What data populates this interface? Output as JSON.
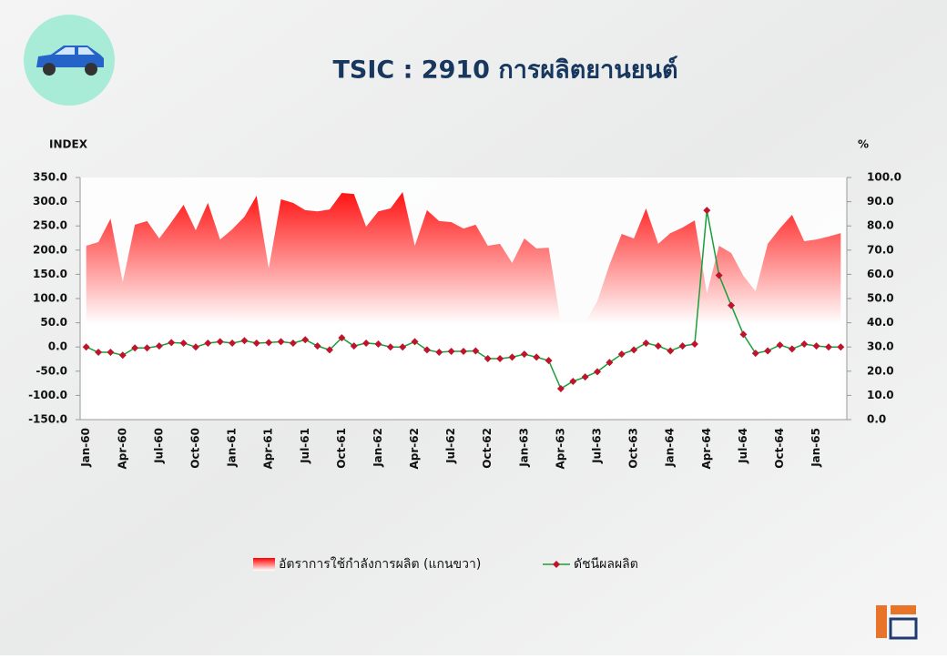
{
  "chart_data": {
    "type": "area-line",
    "title": "TSIC : 2910 การผลิตยานยนต์",
    "y_label": "INDEX",
    "y2_label": "%",
    "categories": [
      "Jan-60",
      null,
      null,
      "Apr-60",
      null,
      null,
      "Jul-60",
      null,
      null,
      "Oct-60",
      null,
      null,
      "Jan-61",
      null,
      null,
      "Apr-61",
      null,
      null,
      "Jul-61",
      null,
      null,
      "Oct-61",
      null,
      null,
      "Jan-62",
      null,
      null,
      "Apr-62",
      null,
      null,
      "Jul-62",
      null,
      null,
      "Oct-62",
      null,
      null,
      "Jan-63",
      null,
      null,
      "Apr-63",
      null,
      null,
      "Jul-63",
      null,
      null,
      "Oct-63",
      null,
      null,
      "Jan-64",
      null,
      null,
      "Apr-64",
      null,
      null,
      "Jul-64",
      null,
      null,
      "Oct-64",
      null,
      null,
      "Jan-65",
      null,
      null
    ],
    "series": [
      {
        "name": "อัตราการใช้กำลังการผลิต (แกนขวา)",
        "kind": "area",
        "axis": "y2",
        "color": "#ff0000",
        "values": [
          71.8,
          73.3,
          83,
          56.8,
          80.5,
          82,
          74.8,
          81.6,
          88.7,
          78.2,
          89.5,
          74.4,
          78.6,
          83.8,
          92.5,
          62.4,
          91,
          89.5,
          86.5,
          86,
          86.8,
          93.6,
          93.2,
          79.7,
          86,
          87.2,
          94,
          71.8,
          86.5,
          82,
          81.6,
          78.9,
          80.5,
          71.8,
          72.6,
          64.7,
          74.8,
          70.7,
          71,
          40,
          40,
          40,
          49,
          64,
          76.7,
          74.8,
          87.2,
          72.6,
          77,
          79.3,
          82.3,
          52,
          71.8,
          68.8,
          59.4,
          53,
          72.6,
          79,
          84.6,
          73.7,
          74.4,
          75.6,
          77
        ]
      },
      {
        "name": "ดัชนีผลผลิต",
        "kind": "line",
        "axis": "y",
        "color": "#1a9e3a",
        "marker_color": "#c0142c",
        "values": [
          0,
          -11,
          -11,
          -17,
          -2,
          -2,
          2,
          9,
          8,
          0,
          8,
          11,
          8,
          13,
          8,
          9,
          11,
          8,
          15,
          2,
          -6,
          19,
          2,
          8,
          6,
          0,
          0,
          11,
          -6,
          -11,
          -9,
          -9,
          -8,
          -24,
          -24,
          -21,
          -15,
          -21,
          -28,
          -86,
          -71,
          -62,
          -51,
          -32,
          -15,
          -6,
          8,
          2,
          -8,
          2,
          6,
          282,
          148,
          86,
          26,
          -13,
          -8,
          4,
          -4,
          6,
          2,
          0,
          0
        ]
      }
    ],
    "ylim": [
      -150,
      350
    ],
    "yticks": [
      {
        "value": -150,
        "label": "-150.0"
      },
      {
        "value": -100,
        "label": "-100.0"
      },
      {
        "value": -50,
        "label": "-50.0"
      },
      {
        "value": 0,
        "label": "0.0"
      },
      {
        "value": 50,
        "label": "50.0"
      },
      {
        "value": 100,
        "label": "100.0"
      },
      {
        "value": 150,
        "label": "150.0"
      },
      {
        "value": 200,
        "label": "200.0"
      },
      {
        "value": 250,
        "label": "250.0"
      },
      {
        "value": 300,
        "label": "300.0"
      },
      {
        "value": 350,
        "label": "350.0"
      }
    ],
    "y2lim": [
      0,
      100
    ],
    "y2ticks": [
      {
        "value": 0,
        "label": "0.0"
      },
      {
        "value": 10,
        "label": "10.0"
      },
      {
        "value": 20,
        "label": "20.0"
      },
      {
        "value": 30,
        "label": "30.0"
      },
      {
        "value": 40,
        "label": "40.0"
      },
      {
        "value": 50,
        "label": "50.0"
      },
      {
        "value": 60,
        "label": "60.0"
      },
      {
        "value": 70,
        "label": "70.0"
      },
      {
        "value": 80,
        "label": "80.0"
      },
      {
        "value": 90,
        "label": "90.0"
      },
      {
        "value": 100,
        "label": "100.0"
      }
    ],
    "legend": "bottom"
  }
}
